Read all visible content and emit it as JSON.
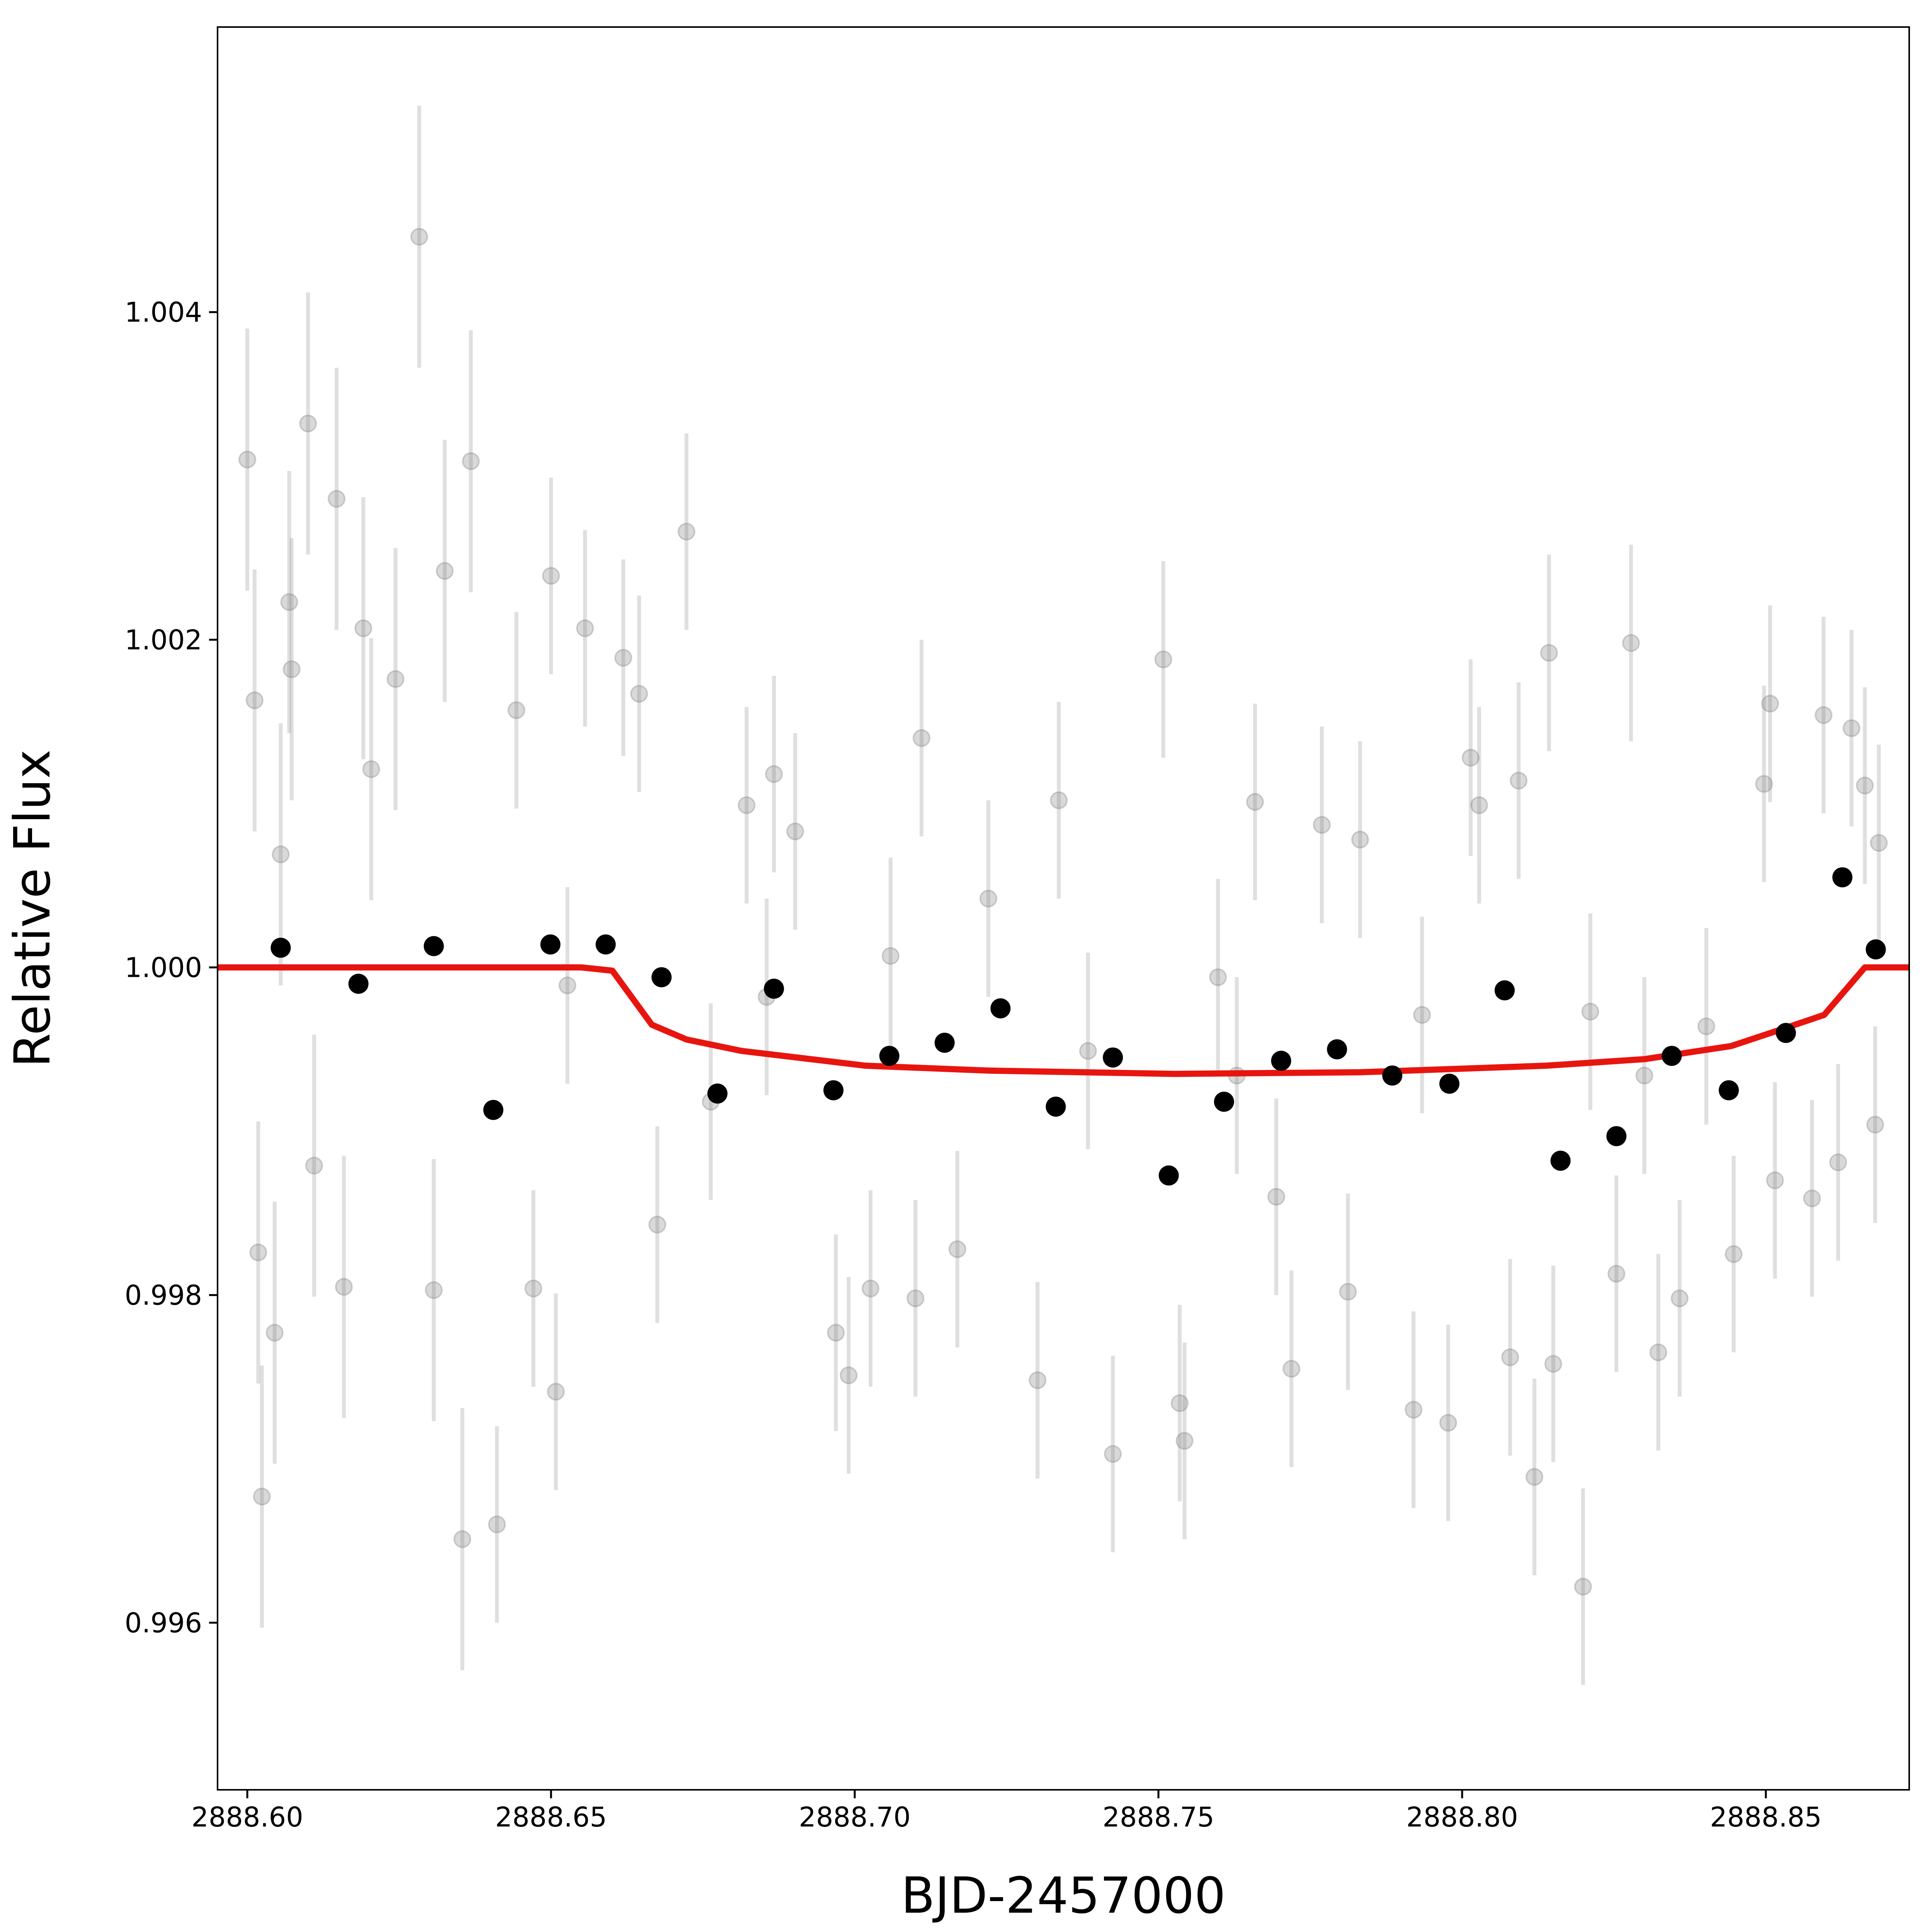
{
  "chart_data": {
    "type": "scatter",
    "x_label": "BJD-2457000",
    "y_label": "Relative Flux",
    "xlim": [
      2888.5951,
      2888.8736
    ],
    "ylim": [
      0.99498,
      1.00574
    ],
    "xticks": [
      {
        "value": 2888.6,
        "label": "2888.60"
      },
      {
        "value": 2888.65,
        "label": "2888.65"
      },
      {
        "value": 2888.7,
        "label": "2888.70"
      },
      {
        "value": 2888.75,
        "label": "2888.75"
      },
      {
        "value": 2888.8,
        "label": "2888.80"
      },
      {
        "value": 2888.85,
        "label": "2888.85"
      }
    ],
    "yticks": [
      {
        "value": 0.996,
        "label": "0.996"
      },
      {
        "value": 0.998,
        "label": "0.998"
      },
      {
        "value": 1.0,
        "label": "1.000"
      },
      {
        "value": 1.002,
        "label": "1.002"
      },
      {
        "value": 1.004,
        "label": "1.004"
      }
    ],
    "grid": false,
    "series": [
      {
        "style": "errorbar",
        "color": "#808080",
        "x": [
          2888.6,
          2888.6012,
          2888.6018,
          2888.6024,
          2888.6045,
          2888.6055,
          2888.6069,
          2888.6073,
          2888.61,
          2888.611,
          2888.6147,
          2888.6159,
          2888.6191,
          2888.6204,
          2888.6244,
          2888.6283,
          2888.6307,
          2888.6325,
          2888.6354,
          2888.6368,
          2888.6411,
          2888.6443,
          2888.6471,
          2888.65,
          2888.6508,
          2888.6527,
          2888.6556,
          2888.6619,
          2888.6645,
          2888.6675,
          2888.6723,
          2888.6763,
          2888.6822,
          2888.6855,
          2888.6867,
          2888.6902,
          2888.6969,
          2888.699,
          2888.7026,
          2888.7059,
          2888.71,
          2888.711,
          2888.7169,
          2888.722,
          2888.7301,
          2888.7336,
          2888.7384,
          2888.7425,
          2888.7508,
          2888.7535,
          2888.7543,
          2888.7598,
          2888.7629,
          2888.7659,
          2888.7694,
          2888.7719,
          2888.7769,
          2888.7812,
          2888.7832,
          2888.792,
          2888.7934,
          2888.7977,
          2888.8014,
          2888.8028,
          2888.8079,
          2888.8093,
          2888.8119,
          2888.8143,
          2888.815,
          2888.8199,
          2888.8211,
          2888.8254,
          2888.8278,
          2888.83,
          2888.8323,
          2888.8358,
          2888.8402,
          2888.8447,
          2888.8497,
          2888.8507,
          2888.8515,
          2888.8576,
          2888.8595,
          2888.8619,
          2888.8641,
          2888.8663,
          2888.868,
          2888.8686
        ],
        "values": [
          1.0031,
          1.00163,
          0.99826,
          0.99677,
          0.99777,
          1.00069,
          1.00223,
          1.00182,
          1.00332,
          0.99879,
          1.00286,
          0.99805,
          1.00207,
          1.00121,
          1.00176,
          1.00446,
          0.99803,
          1.00242,
          0.99651,
          1.00309,
          0.9966,
          1.00157,
          0.99804,
          1.00239,
          0.99741,
          0.99989,
          1.00207,
          1.00189,
          1.00167,
          0.99843,
          1.00266,
          0.99918,
          1.00099,
          0.99982,
          1.00118,
          1.00083,
          0.99777,
          0.99751,
          0.99804,
          1.00007,
          0.99798,
          1.0014,
          0.99828,
          1.00042,
          0.99748,
          1.00102,
          0.99949,
          0.99703,
          1.00188,
          0.99734,
          0.99711,
          0.99994,
          0.99934,
          1.00101,
          0.9986,
          0.99755,
          1.00087,
          0.99802,
          1.00078,
          0.9973,
          0.99971,
          0.99722,
          1.00128,
          1.00099,
          0.99762,
          1.00114,
          0.99689,
          1.00192,
          0.99758,
          0.99622,
          0.99973,
          0.99813,
          1.00198,
          0.99934,
          0.99765,
          0.99798,
          0.99964,
          0.99825,
          1.00112,
          1.00161,
          0.9987,
          0.99859,
          1.00154,
          0.99881,
          1.00146,
          1.00111,
          0.99904,
          1.00076
        ],
        "errors": [
          0.0008,
          0.0008,
          0.0008,
          0.0008,
          0.0008,
          0.0008,
          0.0008,
          0.0008,
          0.0008,
          0.0008,
          0.0008,
          0.0008,
          0.0008,
          0.0008,
          0.0008,
          0.0008,
          0.0008,
          0.0008,
          0.0008,
          0.0008,
          0.0006,
          0.0006,
          0.0006,
          0.0006,
          0.0006,
          0.0006,
          0.0006,
          0.0006,
          0.0006,
          0.0006,
          0.0006,
          0.0006,
          0.0006,
          0.0006,
          0.0006,
          0.0006,
          0.0006,
          0.0006,
          0.0006,
          0.0006,
          0.0006,
          0.0006,
          0.0006,
          0.0006,
          0.0006,
          0.0006,
          0.0006,
          0.0006,
          0.0006,
          0.0006,
          0.0006,
          0.0006,
          0.0006,
          0.0006,
          0.0006,
          0.0006,
          0.0006,
          0.0006,
          0.0006,
          0.0006,
          0.0006,
          0.0006,
          0.0006,
          0.0006,
          0.0006,
          0.0006,
          0.0006,
          0.0006,
          0.0006,
          0.0006,
          0.0006,
          0.0006,
          0.0006,
          0.0006,
          0.0006,
          0.0006,
          0.0006,
          0.0006,
          0.0006,
          0.0006,
          0.0006,
          0.0006,
          0.0006,
          0.0006,
          0.0006,
          0.0006,
          0.0006,
          0.0006
        ]
      },
      {
        "style": "line",
        "color": "#e8150f",
        "x": [
          2888.5951,
          2888.655,
          2888.6601,
          2888.6666,
          2888.6723,
          2888.6814,
          2888.7018,
          2888.7222,
          2888.7527,
          2888.7832,
          2888.8138,
          2888.83,
          2888.8443,
          2888.8524,
          2888.8596,
          2888.8663,
          2888.8736
        ],
        "values": [
          1.0,
          1.0,
          0.99998,
          0.99965,
          0.99956,
          0.99949,
          0.9994,
          0.99937,
          0.99935,
          0.99936,
          0.9994,
          0.99944,
          0.99952,
          0.99962,
          0.99971,
          1.0,
          1.0
        ]
      },
      {
        "style": "points",
        "color": "#000000",
        "x": [
          2888.6055,
          2888.6183,
          2888.6307,
          2888.6405,
          2888.6499,
          2888.659,
          2888.6682,
          2888.6774,
          2888.6867,
          2888.6965,
          2888.7057,
          2888.7148,
          2888.724,
          2888.7331,
          2888.7425,
          2888.7517,
          2888.7608,
          2888.7702,
          2888.7794,
          2888.7885,
          2888.7979,
          2888.807,
          2888.8162,
          2888.8254,
          2888.8345,
          2888.8439,
          2888.8533,
          2888.8626,
          2888.8681
        ],
        "values": [
          1.00012,
          0.9999,
          1.00013,
          0.99913,
          1.00014,
          1.00014,
          0.99994,
          0.99923,
          0.99987,
          0.99925,
          0.99946,
          0.99954,
          0.99975,
          0.99915,
          0.99945,
          0.99873,
          0.99918,
          0.99943,
          0.9995,
          0.99934,
          0.99929,
          0.99986,
          0.99882,
          0.99897,
          0.99946,
          0.99925,
          0.9996,
          1.00055,
          1.00011
        ]
      }
    ]
  }
}
